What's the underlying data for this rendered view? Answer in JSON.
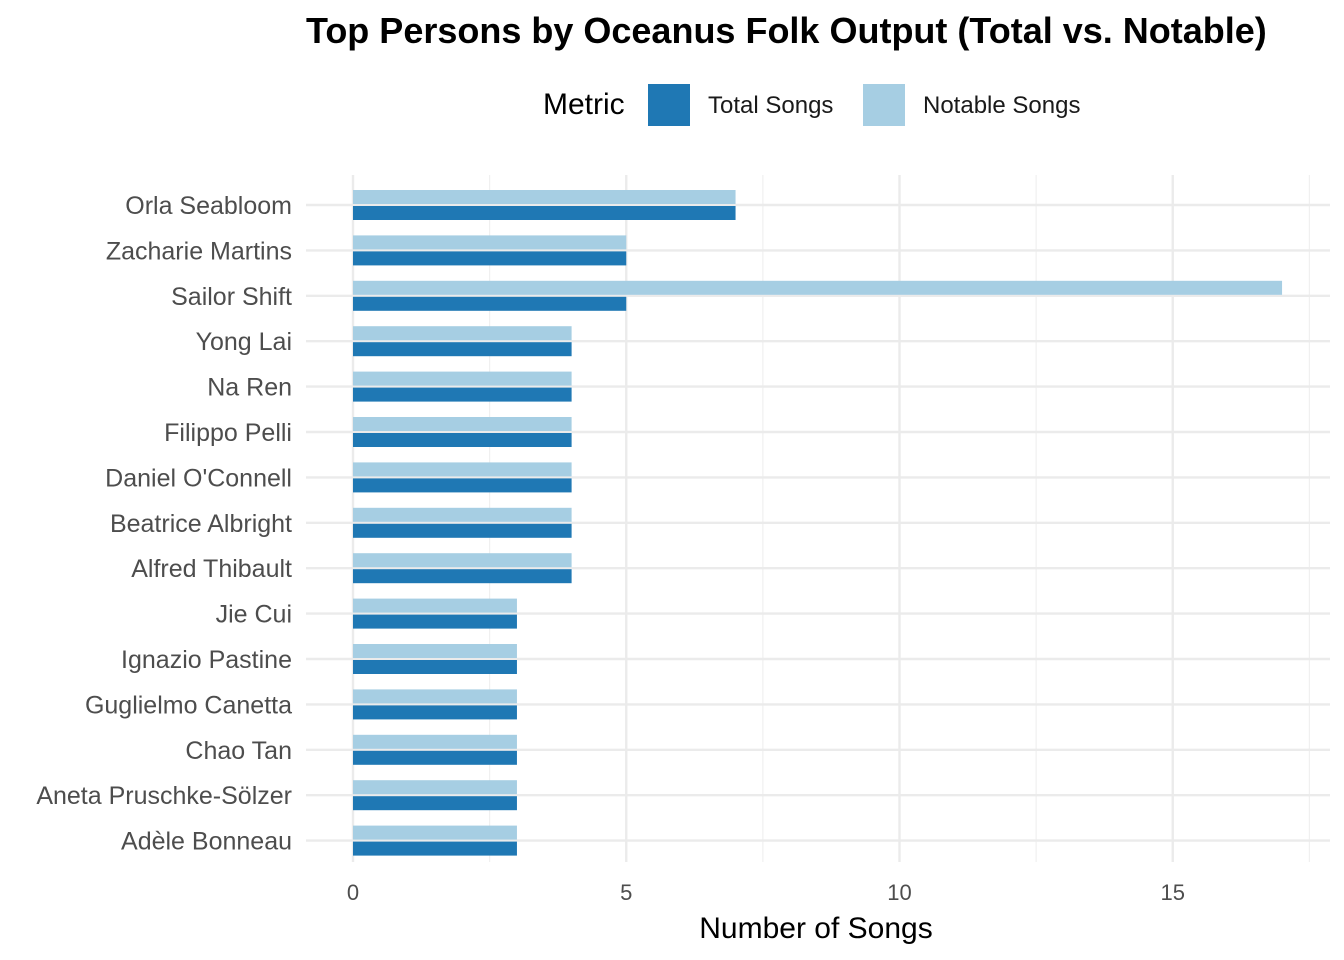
{
  "chart_data": {
    "type": "bar",
    "orientation": "horizontal",
    "title": "Top Persons by Oceanus Folk Output (Total vs. Notable)",
    "xlabel": "Number of Songs",
    "ylabel": "",
    "xlim": [
      0,
      17.5
    ],
    "xticks": [
      0,
      5,
      10,
      15
    ],
    "grid": true,
    "legend_position": "top",
    "legend_title": "Metric",
    "categories": [
      "Orla Seabloom",
      "Zacharie Martins",
      "Sailor Shift",
      "Yong Lai",
      "Na Ren",
      "Filippo Pelli",
      "Daniel O'Connell",
      "Beatrice Albright",
      "Alfred Thibault",
      "Jie Cui",
      "Ignazio Pastine",
      "Guglielmo Canetta",
      "Chao Tan",
      "Aneta Pruschke-Sölzer",
      "Adèle Bonneau"
    ],
    "series": [
      {
        "name": "Total Songs",
        "color": "#1f78b4",
        "values": [
          7,
          5,
          5,
          4,
          4,
          4,
          4,
          4,
          4,
          3,
          3,
          3,
          3,
          3,
          3
        ]
      },
      {
        "name": "Notable Songs",
        "color": "#a6cee3",
        "values": [
          7,
          5,
          17,
          4,
          4,
          4,
          4,
          4,
          4,
          3,
          3,
          3,
          3,
          3,
          3
        ]
      }
    ]
  }
}
